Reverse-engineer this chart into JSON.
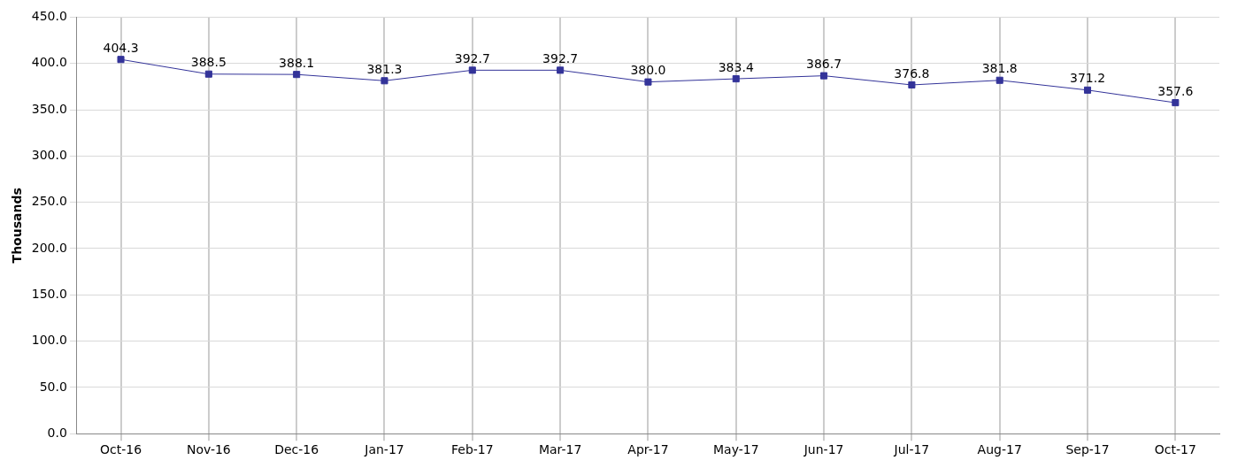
{
  "chart_data": {
    "type": "line",
    "ylabel": "Thousands",
    "categories": [
      "Oct-16",
      "Nov-16",
      "Dec-16",
      "Jan-17",
      "Feb-17",
      "Mar-17",
      "Apr-17",
      "May-17",
      "Jun-17",
      "Jul-17",
      "Aug-17",
      "Sep-17",
      "Oct-17"
    ],
    "series": [
      {
        "color": "#333399",
        "values": [
          404.3,
          388.5,
          388.1,
          381.3,
          392.7,
          392.7,
          380.0,
          383.4,
          386.7,
          376.8,
          381.8,
          371.2,
          357.6
        ],
        "value_labels": [
          "404.3",
          "388.5",
          "388.1",
          "381.3",
          "392.7",
          "392.7",
          "380.0",
          "383.4",
          "386.7",
          "376.8",
          "381.8",
          "371.2",
          "357.6"
        ]
      }
    ],
    "ylim": [
      0,
      450
    ],
    "yticks": [
      {
        "value": 0,
        "label": "0.0"
      },
      {
        "value": 50,
        "label": "50.0"
      },
      {
        "value": 100,
        "label": "100.0"
      },
      {
        "value": 150,
        "label": "150.0"
      },
      {
        "value": 200,
        "label": "200.0"
      },
      {
        "value": 250,
        "label": "250.0"
      },
      {
        "value": 300,
        "label": "300.0"
      },
      {
        "value": 350,
        "label": "350.0"
      },
      {
        "value": 400,
        "label": "400.0"
      },
      {
        "value": 450,
        "label": "450.0"
      }
    ],
    "grid": true,
    "legend": false,
    "marker": "square",
    "line_style": "solid"
  }
}
